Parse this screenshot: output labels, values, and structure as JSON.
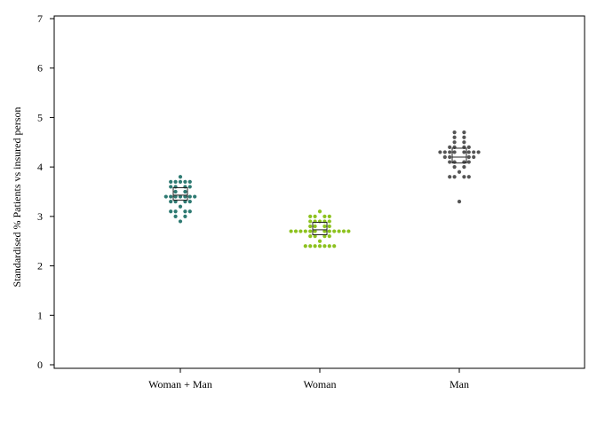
{
  "chart_data": {
    "type": "scatter",
    "subtype": "dot-plot with median box",
    "title": "",
    "xlabel": "",
    "ylabel": "Standardised % Patients vs insured person",
    "ylim": [
      0,
      7
    ],
    "yticks": [
      0,
      1,
      2,
      3,
      4,
      5,
      6,
      7
    ],
    "categories": [
      "Woman + Man",
      "Woman",
      "Man"
    ],
    "grid": false,
    "legend": "none",
    "series": [
      {
        "category": "Woman + Man",
        "color": "#2e7a72",
        "points": [
          {
            "dx": 0,
            "y": 3.8
          },
          {
            "dx": -1,
            "y": 3.7
          },
          {
            "dx": 0,
            "y": 3.7
          },
          {
            "dx": 1,
            "y": 3.7
          },
          {
            "dx": -2,
            "y": 3.7
          },
          {
            "dx": 2,
            "y": 3.7
          },
          {
            "dx": -2,
            "y": 3.6
          },
          {
            "dx": -1,
            "y": 3.6
          },
          {
            "dx": 1,
            "y": 3.6
          },
          {
            "dx": 2,
            "y": 3.6
          },
          {
            "dx": -1,
            "y": 3.5
          },
          {
            "dx": 1,
            "y": 3.5
          },
          {
            "dx": -3,
            "y": 3.4
          },
          {
            "dx": -2,
            "y": 3.4
          },
          {
            "dx": -1,
            "y": 3.4
          },
          {
            "dx": 0,
            "y": 3.4
          },
          {
            "dx": 1,
            "y": 3.4
          },
          {
            "dx": 2,
            "y": 3.4
          },
          {
            "dx": 3,
            "y": 3.4
          },
          {
            "dx": -2,
            "y": 3.3
          },
          {
            "dx": -1,
            "y": 3.3
          },
          {
            "dx": 1,
            "y": 3.3
          },
          {
            "dx": 2,
            "y": 3.3
          },
          {
            "dx": 0,
            "y": 3.2
          },
          {
            "dx": -2,
            "y": 3.1
          },
          {
            "dx": -1,
            "y": 3.1
          },
          {
            "dx": 1,
            "y": 3.1
          },
          {
            "dx": 2,
            "y": 3.1
          },
          {
            "dx": -1,
            "y": 3.0
          },
          {
            "dx": 1,
            "y": 3.0
          },
          {
            "dx": 0,
            "y": 2.9
          }
        ],
        "box": {
          "q1": 3.33,
          "median": 3.43,
          "q3": 3.58
        }
      },
      {
        "category": "Woman",
        "color": "#8dc21f",
        "points": [
          {
            "dx": 0,
            "y": 3.1
          },
          {
            "dx": -1,
            "y": 3.0
          },
          {
            "dx": 1,
            "y": 3.0
          },
          {
            "dx": -2,
            "y": 3.0
          },
          {
            "dx": 2,
            "y": 3.0
          },
          {
            "dx": -2,
            "y": 2.9
          },
          {
            "dx": -1,
            "y": 2.9
          },
          {
            "dx": 0,
            "y": 2.9
          },
          {
            "dx": 1,
            "y": 2.9
          },
          {
            "dx": 2,
            "y": 2.9
          },
          {
            "dx": -2,
            "y": 2.8
          },
          {
            "dx": -1,
            "y": 2.8
          },
          {
            "dx": 1,
            "y": 2.8
          },
          {
            "dx": 2,
            "y": 2.8
          },
          {
            "dx": -6,
            "y": 2.7
          },
          {
            "dx": -5,
            "y": 2.7
          },
          {
            "dx": -4,
            "y": 2.7
          },
          {
            "dx": -3,
            "y": 2.7
          },
          {
            "dx": -2,
            "y": 2.7
          },
          {
            "dx": -1,
            "y": 2.7
          },
          {
            "dx": 1,
            "y": 2.7
          },
          {
            "dx": 2,
            "y": 2.7
          },
          {
            "dx": 3,
            "y": 2.7
          },
          {
            "dx": 4,
            "y": 2.7
          },
          {
            "dx": 5,
            "y": 2.7
          },
          {
            "dx": 6,
            "y": 2.7
          },
          {
            "dx": -2,
            "y": 2.6
          },
          {
            "dx": -1,
            "y": 2.6
          },
          {
            "dx": 1,
            "y": 2.6
          },
          {
            "dx": 2,
            "y": 2.6
          },
          {
            "dx": 0,
            "y": 2.5
          },
          {
            "dx": -3,
            "y": 2.4
          },
          {
            "dx": -2,
            "y": 2.4
          },
          {
            "dx": -1,
            "y": 2.4
          },
          {
            "dx": 0,
            "y": 2.4
          },
          {
            "dx": 1,
            "y": 2.4
          },
          {
            "dx": 2,
            "y": 2.4
          },
          {
            "dx": 3,
            "y": 2.4
          }
        ],
        "box": {
          "q1": 2.63,
          "median": 2.73,
          "q3": 2.88
        }
      },
      {
        "category": "Man",
        "color": "#555555",
        "points": [
          {
            "dx": -1,
            "y": 4.7
          },
          {
            "dx": 1,
            "y": 4.7
          },
          {
            "dx": -1,
            "y": 4.6
          },
          {
            "dx": 1,
            "y": 4.6
          },
          {
            "dx": -1,
            "y": 4.5
          },
          {
            "dx": 1,
            "y": 4.5
          },
          {
            "dx": -2,
            "y": 4.4
          },
          {
            "dx": -1,
            "y": 4.4
          },
          {
            "dx": 1,
            "y": 4.4
          },
          {
            "dx": 2,
            "y": 4.4
          },
          {
            "dx": -4,
            "y": 4.3
          },
          {
            "dx": -3,
            "y": 4.3
          },
          {
            "dx": -2,
            "y": 4.3
          },
          {
            "dx": -1,
            "y": 4.3
          },
          {
            "dx": 1,
            "y": 4.3
          },
          {
            "dx": 2,
            "y": 4.3
          },
          {
            "dx": 3,
            "y": 4.3
          },
          {
            "dx": 4,
            "y": 4.3
          },
          {
            "dx": -3,
            "y": 4.2
          },
          {
            "dx": -2,
            "y": 4.2
          },
          {
            "dx": 2,
            "y": 4.2
          },
          {
            "dx": 3,
            "y": 4.2
          },
          {
            "dx": -2,
            "y": 4.1
          },
          {
            "dx": -1,
            "y": 4.1
          },
          {
            "dx": 1,
            "y": 4.1
          },
          {
            "dx": 2,
            "y": 4.1
          },
          {
            "dx": -1,
            "y": 4.0
          },
          {
            "dx": 1,
            "y": 4.0
          },
          {
            "dx": 0,
            "y": 3.9
          },
          {
            "dx": -2,
            "y": 3.8
          },
          {
            "dx": -1,
            "y": 3.8
          },
          {
            "dx": 1,
            "y": 3.8
          },
          {
            "dx": 2,
            "y": 3.8
          },
          {
            "dx": 0,
            "y": 3.3
          }
        ],
        "box": {
          "q1": 4.08,
          "median": 4.2,
          "q3": 4.38
        }
      }
    ]
  }
}
